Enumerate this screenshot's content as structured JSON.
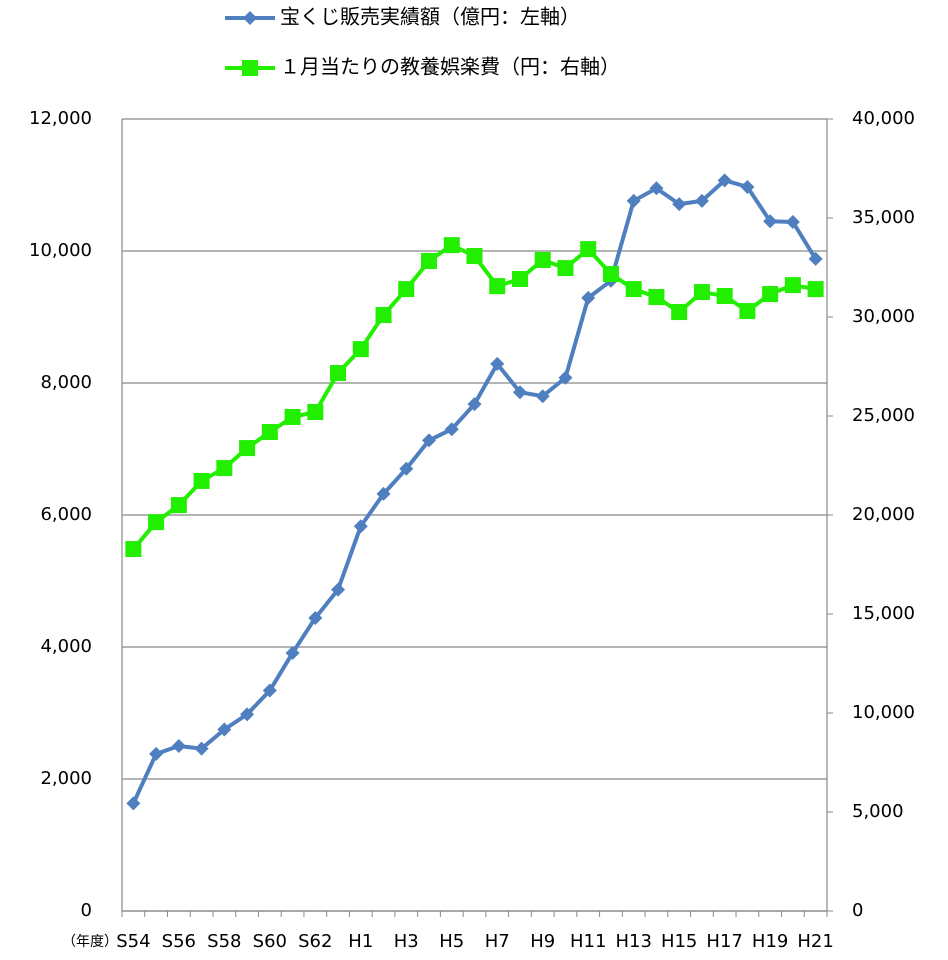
{
  "chart_data": {
    "type": "line",
    "x_label": "（年度）",
    "categories": [
      "S54",
      null,
      "S56",
      null,
      "S58",
      null,
      "S60",
      null,
      "S62",
      null,
      "H1",
      null,
      "H3",
      null,
      "H5",
      null,
      "H7",
      null,
      "H9",
      null,
      "H11",
      null,
      "H13",
      null,
      "H15",
      null,
      "H17",
      null,
      "H19",
      null,
      "H21"
    ],
    "series": [
      {
        "name": "宝くじ販売実績額（億円：左軸）",
        "color": "#4f7fbf",
        "marker": "diamond",
        "values": [
          1630,
          2380,
          2500,
          2460,
          2750,
          2980,
          3340,
          3910,
          4440,
          4870,
          5830,
          6320,
          6700,
          7130,
          7300,
          7680,
          8290,
          7860,
          7800,
          8080,
          9290,
          9550,
          10760,
          10950,
          10710,
          10760,
          11070,
          10970,
          10450,
          10440,
          9880
        ]
      },
      {
        "name": "１月当たりの教養娯楽費（円：右軸）",
        "color": "#22ee00",
        "marker": "square",
        "axis": "y2",
        "values": [
          18280,
          19640,
          20500,
          21720,
          22370,
          23380,
          24190,
          24950,
          25200,
          27170,
          28380,
          30100,
          31410,
          32830,
          33630,
          33080,
          31560,
          31920,
          32880,
          32470,
          33430,
          32170,
          31410,
          31010,
          30250,
          31260,
          31060,
          30300,
          31160,
          31610,
          31410
        ]
      }
    ],
    "ylim": [
      0,
      12000
    ],
    "yticks": [
      0,
      {
        "value": 2000,
        "label": "2,000"
      },
      {
        "value": 4000,
        "label": "4,000"
      },
      {
        "value": 6000,
        "label": "6,000"
      },
      {
        "value": 8000,
        "label": "8,000"
      },
      {
        "value": 10000,
        "label": "10,000"
      },
      {
        "value": 12000,
        "label": "12,000"
      }
    ],
    "y2lim": [
      0,
      40000
    ],
    "y2ticks": [
      0,
      {
        "value": 5000,
        "label": "5,000"
      },
      {
        "value": 10000,
        "label": "10,000"
      },
      {
        "value": 15000,
        "label": "15,000"
      },
      {
        "value": 20000,
        "label": "20,000"
      },
      {
        "value": 25000,
        "label": "25,000"
      },
      {
        "value": 30000,
        "label": "30,000"
      },
      {
        "value": 35000,
        "label": "35,000"
      },
      {
        "value": 40000,
        "label": "40,000"
      }
    ],
    "grid": true,
    "legend": "top"
  }
}
